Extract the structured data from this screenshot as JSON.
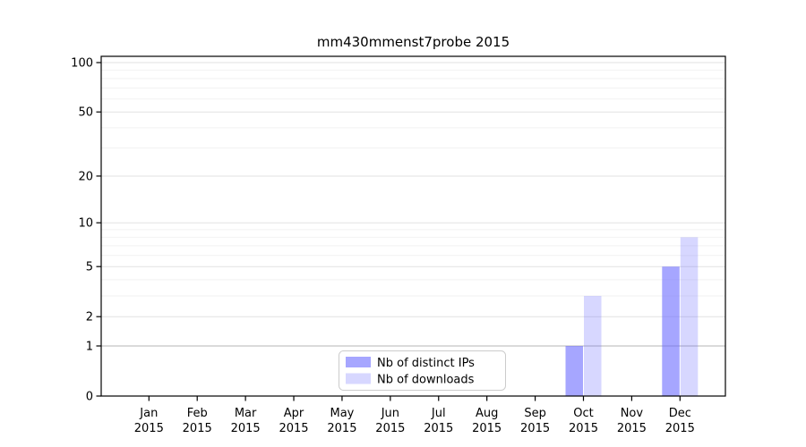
{
  "chart_data": {
    "type": "bar",
    "title": "mm430mmenst7probe 2015",
    "year": "2015",
    "months": [
      "Jan",
      "Feb",
      "Mar",
      "Apr",
      "May",
      "Jun",
      "Jul",
      "Aug",
      "Sep",
      "Oct",
      "Nov",
      "Dec"
    ],
    "categories": [
      "Jan 2015",
      "Feb 2015",
      "Mar 2015",
      "Apr 2015",
      "May 2015",
      "Jun 2015",
      "Jul 2015",
      "Aug 2015",
      "Sep 2015",
      "Oct 2015",
      "Nov 2015",
      "Dec 2015"
    ],
    "series": [
      {
        "name": "Nb of distinct IPs",
        "values": [
          0,
          0,
          0,
          0,
          0,
          0,
          0,
          0,
          0,
          1,
          0,
          5
        ],
        "color": "#6666ff",
        "opacity": 0.58
      },
      {
        "name": "Nb of downloads",
        "values": [
          0,
          0,
          0,
          0,
          0,
          0,
          0,
          0,
          0,
          3,
          0,
          8
        ],
        "color": "#6666ff",
        "opacity": 0.26
      }
    ],
    "xlabel": "",
    "ylabel": "",
    "yscale": "log1p",
    "ylim": [
      0,
      110
    ],
    "y_major_ticks": [
      0,
      1,
      2,
      5,
      10,
      20,
      50,
      100
    ],
    "y_minor_ticks": [
      3,
      4,
      6,
      7,
      8,
      9,
      30,
      40,
      60,
      70,
      80,
      90
    ],
    "grid": "horizontal",
    "legend_position": "bottom-center-inside"
  },
  "colors": {
    "grid_minor": "#f2f2f2",
    "grid_major": "#e2e2e2",
    "grid_unit_line": "#b4b4b4",
    "axis": "#000000",
    "legend_border": "#cccccc",
    "background": "#ffffff"
  }
}
